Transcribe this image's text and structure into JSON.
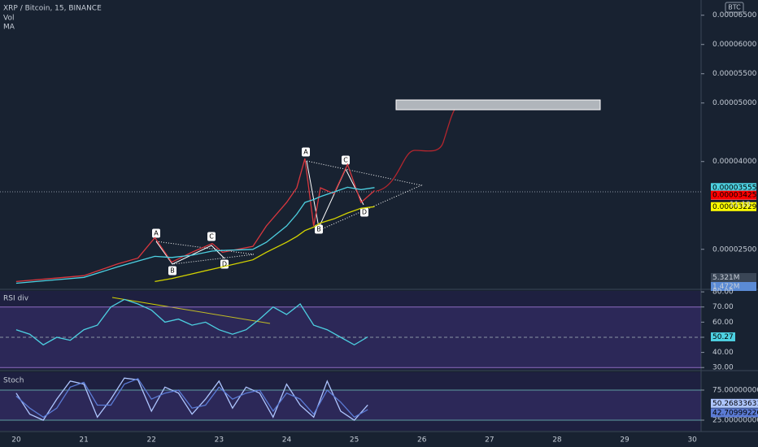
{
  "header": {
    "title": "XRP / Bitcoin, 15, BINANCE",
    "indicators": [
      "Vol",
      "MA"
    ],
    "currency": "BTC"
  },
  "chart_data": [
    {
      "type": "line",
      "x": [
        20,
        20.5,
        21,
        21.5,
        21.8,
        22.05,
        22.3,
        22.6,
        22.9,
        23.05,
        23.5,
        23.7,
        24,
        24.15,
        24.27,
        24.4,
        24.5,
        24.7,
        24.9,
        25.1,
        25.3
      ],
      "series": [
        {
          "color": "#d9373e",
          "values": [
            1.95e-05,
            2e-05,
            2.05e-05,
            2.25e-05,
            2.35e-05,
            2.7e-05,
            2.28e-05,
            2.45e-05,
            2.6e-05,
            2.45e-05,
            2.55e-05,
            2.9e-05,
            3.3e-05,
            3.55e-05,
            4.05e-05,
            2.9e-05,
            3.55e-05,
            3.45e-05,
            3.95e-05,
            3.3e-05,
            3.504e-05
          ]
        },
        {
          "color": "#4dd0e1",
          "values": [
            1.92e-05,
            1.97e-05,
            2.02e-05,
            2.2e-05,
            2.3e-05,
            2.38e-05,
            2.36e-05,
            2.4e-05,
            2.47e-05,
            2.48e-05,
            2.5e-05,
            2.62e-05,
            2.9e-05,
            3.1e-05,
            3.3e-05,
            3.35e-05,
            3.4e-05,
            3.48e-05,
            3.56e-05,
            3.52e-05,
            3.555e-05
          ]
        },
        {
          "color": "#d4d400",
          "values": [
            null,
            null,
            null,
            null,
            null,
            1.95e-05,
            2e-05,
            2.08e-05,
            2.16e-05,
            2.2e-05,
            2.32e-05,
            2.45e-05,
            2.62e-05,
            2.72e-05,
            2.82e-05,
            2.88e-05,
            2.95e-05,
            3.02e-05,
            3.12e-05,
            3.2e-05,
            3.229e-05
          ]
        }
      ],
      "xlim": [
        19.76,
        30.13
      ],
      "xticks": [
        20,
        21,
        22,
        23,
        24,
        25,
        26,
        27,
        28,
        29,
        30
      ],
      "ylim": [
        1.83e-05,
        6.76e-05
      ],
      "yticks": [
        {
          "value": 6.5e-05,
          "label": "0.00006500"
        },
        {
          "value": 6e-05,
          "label": "0.00006000"
        },
        {
          "value": 5.5e-05,
          "label": "0.00005500"
        },
        {
          "value": 5e-05,
          "label": "0.00005000"
        },
        {
          "value": 4e-05,
          "label": "0.00004000"
        },
        {
          "value": 2.5e-05,
          "label": "0.00002500"
        }
      ],
      "price_labels": [
        {
          "value": 3.555e-05,
          "label": "0.00003555",
          "color": "#4dd0e1"
        },
        {
          "value": 3.504e-05,
          "label": "0.00003504",
          "color": "#b3cde8"
        },
        {
          "value": 3.425e-05,
          "label": "0.00003425",
          "color": "#ff0000"
        },
        {
          "value": 3.229e-05,
          "label": "0.00003229",
          "color": "#ffff00"
        }
      ],
      "countdown": "11:19",
      "volume_labels": [
        "5.321M",
        "1.472M"
      ],
      "pattern_labels": [
        "A",
        "B",
        "C",
        "D",
        "A",
        "B",
        "C",
        "D"
      ]
    },
    {
      "type": "line",
      "title": "RSI div",
      "x": [
        20,
        20.2,
        20.4,
        20.6,
        20.8,
        21,
        21.2,
        21.4,
        21.6,
        21.8,
        22,
        22.2,
        22.4,
        22.6,
        22.8,
        23,
        23.2,
        23.4,
        23.6,
        23.8,
        24,
        24.2,
        24.4,
        24.6,
        24.8,
        25,
        25.2
      ],
      "color": "#4dd0e1",
      "values": [
        55,
        52,
        45,
        50,
        48,
        55,
        58,
        70,
        75,
        72,
        68,
        60,
        62,
        58,
        60,
        55,
        52,
        55,
        62,
        70,
        65,
        72,
        58,
        55,
        50,
        45,
        50.27
      ],
      "xlim": [
        19.76,
        30.13
      ],
      "ylim": [
        28.5,
        80.6
      ],
      "yticks": [
        {
          "value": 80,
          "label": "80.00"
        },
        {
          "value": 70,
          "label": "70.00"
        },
        {
          "value": 60,
          "label": "60.00"
        },
        {
          "value": 50,
          "label": "50.00"
        },
        {
          "value": 40,
          "label": "40.00"
        },
        {
          "value": 30,
          "label": "30.00"
        }
      ],
      "last_value": 50.27
    },
    {
      "type": "line",
      "title": "Stoch",
      "x": [
        20,
        20.2,
        20.4,
        20.6,
        20.8,
        21,
        21.2,
        21.4,
        21.6,
        21.8,
        22,
        22.2,
        22.4,
        22.6,
        22.8,
        23,
        23.2,
        23.4,
        23.6,
        23.8,
        24,
        24.2,
        24.4,
        24.6,
        24.8,
        25,
        25.2
      ],
      "series": [
        {
          "color": "#aec6ff",
          "values": [
            70,
            35,
            25,
            60,
            90,
            85,
            30,
            60,
            95,
            92,
            40,
            80,
            70,
            35,
            60,
            90,
            45,
            80,
            70,
            30,
            85,
            50,
            30,
            90,
            40,
            25,
            50.26833631
          ]
        },
        {
          "color": "#5b7bd5",
          "values": [
            65,
            45,
            30,
            45,
            80,
            88,
            50,
            50,
            85,
            94,
            60,
            70,
            75,
            45,
            50,
            80,
            60,
            70,
            75,
            40,
            70,
            60,
            35,
            75,
            55,
            30,
            42.70999226
          ]
        }
      ],
      "xlim": [
        19.76,
        30.13
      ],
      "ylim": [
        7.4,
        104.7
      ],
      "yticks": [
        {
          "value": 75,
          "label": "75.00000000"
        },
        {
          "value": 25,
          "label": "25.00000000"
        }
      ],
      "last_values": [
        50.26833631,
        42.70999226
      ]
    }
  ]
}
